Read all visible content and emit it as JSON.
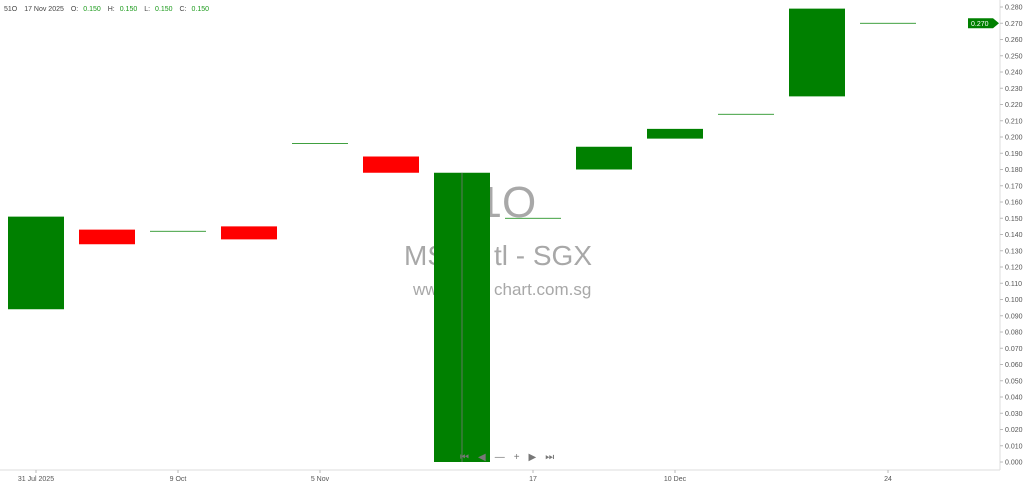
{
  "header": {
    "symbol": "51O",
    "date": "17 Nov 2025",
    "o_label": "O:",
    "o": "0.150",
    "h_label": "H:",
    "h": "0.150",
    "l_label": "L:",
    "l": "0.150",
    "c_label": "C:",
    "c": "0.150"
  },
  "watermark": {
    "ticker": "51O",
    "name_left": "MS",
    "name_right": "tl - SGX",
    "url_left": "www.",
    "url_right": "chart.com.sg"
  },
  "navigation": {
    "first_icon": "skip-to-start-icon",
    "prev_icon": "play-left-icon",
    "zoom_out_icon": "minus-icon",
    "zoom_in_icon": "plus-icon",
    "next_icon": "play-right-icon",
    "last_icon": "skip-to-end-icon"
  },
  "colors": {
    "up": "#008000",
    "down": "#ff0000",
    "flat": "#008000",
    "last_price_bg": "#008000"
  },
  "chart_data": {
    "type": "candlestick",
    "ylim": [
      0,
      0.28
    ],
    "y_ticks": [
      "0.000",
      "0.010",
      "0.020",
      "0.030",
      "0.040",
      "0.050",
      "0.060",
      "0.070",
      "0.080",
      "0.090",
      "0.100",
      "0.110",
      "0.120",
      "0.130",
      "0.140",
      "0.150",
      "0.160",
      "0.170",
      "0.180",
      "0.190",
      "0.200",
      "0.210",
      "0.220",
      "0.230",
      "0.240",
      "0.250",
      "0.260",
      "0.270",
      "0.280"
    ],
    "x_tick_labels": [
      {
        "label": "31 Jul 2025",
        "index": 0
      },
      {
        "label": "9 Oct",
        "index": 2
      },
      {
        "label": "5 Nov",
        "index": 4
      },
      {
        "label": "17",
        "index": 7
      },
      {
        "label": "10 Dec",
        "index": 9
      },
      {
        "label": "24",
        "index": 12
      }
    ],
    "last_price": "0.270",
    "candles": [
      {
        "open": 0.094,
        "close": 0.151
      },
      {
        "open": 0.143,
        "close": 0.134
      },
      {
        "open": 0.142,
        "close": 0.142
      },
      {
        "open": 0.145,
        "close": 0.137
      },
      {
        "open": 0.196,
        "close": 0.196
      },
      {
        "open": 0.188,
        "close": 0.178
      },
      {
        "open": 0.0,
        "close": 0.178
      },
      {
        "open": 0.15,
        "close": 0.15
      },
      {
        "open": 0.18,
        "close": 0.194
      },
      {
        "open": 0.199,
        "close": 0.205
      },
      {
        "open": 0.214,
        "close": 0.214
      },
      {
        "open": 0.225,
        "close": 0.279
      },
      {
        "open": 0.27,
        "close": 0.27
      }
    ]
  }
}
